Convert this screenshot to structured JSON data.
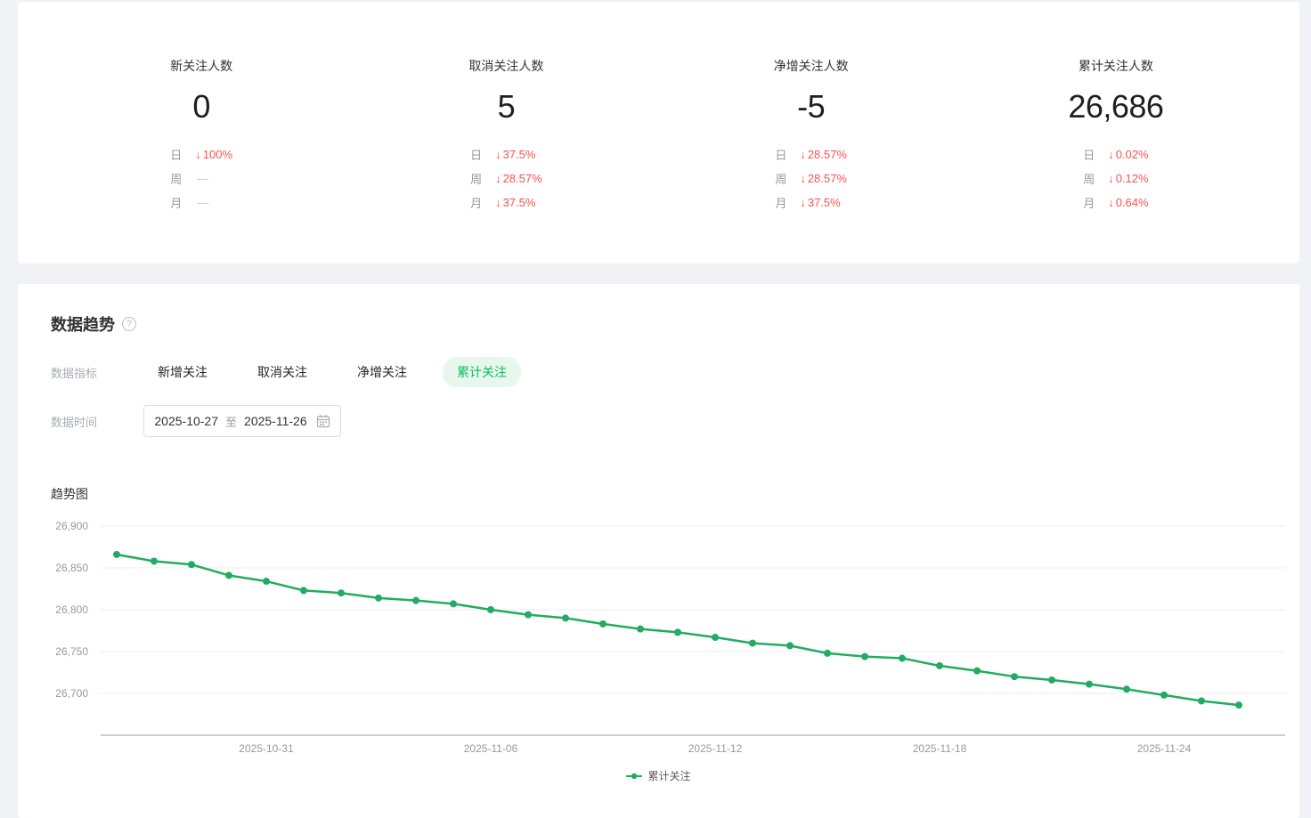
{
  "colors": {
    "green": "#22ac62",
    "tab_active_text": "#07c160",
    "tab_active_bg": "#e8f7ee",
    "red": "#fa5151",
    "axis_text": "#999999",
    "gridline": "#ececec",
    "axis_line": "#cccccc"
  },
  "stats": {
    "cards": [
      {
        "title": "新关注人数",
        "value": "0",
        "trends": [
          {
            "label": "日",
            "arrow": "↓",
            "value": "100%",
            "state": "down"
          },
          {
            "label": "周",
            "arrow": "",
            "value": "—",
            "state": "dash"
          },
          {
            "label": "月",
            "arrow": "",
            "value": "—",
            "state": "dash"
          }
        ]
      },
      {
        "title": "取消关注人数",
        "value": "5",
        "trends": [
          {
            "label": "日",
            "arrow": "↓",
            "value": "37.5%",
            "state": "down"
          },
          {
            "label": "周",
            "arrow": "↓",
            "value": "28.57%",
            "state": "down"
          },
          {
            "label": "月",
            "arrow": "↓",
            "value": "37.5%",
            "state": "down"
          }
        ]
      },
      {
        "title": "净增关注人数",
        "value": "-5",
        "trends": [
          {
            "label": "日",
            "arrow": "↓",
            "value": "28.57%",
            "state": "down"
          },
          {
            "label": "周",
            "arrow": "↓",
            "value": "28.57%",
            "state": "down"
          },
          {
            "label": "月",
            "arrow": "↓",
            "value": "37.5%",
            "state": "down"
          }
        ]
      },
      {
        "title": "累计关注人数",
        "value": "26,686",
        "trends": [
          {
            "label": "日",
            "arrow": "↓",
            "value": "0.02%",
            "state": "down"
          },
          {
            "label": "周",
            "arrow": "↓",
            "value": "0.12%",
            "state": "down"
          },
          {
            "label": "月",
            "arrow": "↓",
            "value": "0.64%",
            "state": "down"
          }
        ]
      }
    ]
  },
  "trend_section": {
    "title": "数据趋势",
    "help_glyph": "?",
    "metric_label": "数据指标",
    "tabs": [
      {
        "label": "新增关注",
        "state": "normal"
      },
      {
        "label": "取消关注",
        "state": "normal"
      },
      {
        "label": "净增关注",
        "state": "normal"
      },
      {
        "label": "累计关注",
        "state": "active"
      }
    ],
    "time_label": "数据时间",
    "date_start": "2025-10-27",
    "date_separator": "至",
    "date_end": "2025-11-26",
    "chart_title": "趋势图"
  },
  "chart_data": {
    "type": "line",
    "title": "趋势图",
    "categories": [
      "2025-10-27",
      "2025-10-28",
      "2025-10-29",
      "2025-10-30",
      "2025-10-31",
      "2025-11-01",
      "2025-11-02",
      "2025-11-03",
      "2025-11-04",
      "2025-11-05",
      "2025-11-06",
      "2025-11-07",
      "2025-11-08",
      "2025-11-09",
      "2025-11-10",
      "2025-11-11",
      "2025-11-12",
      "2025-11-13",
      "2025-11-14",
      "2025-11-15",
      "2025-11-16",
      "2025-11-17",
      "2025-11-18",
      "2025-11-19",
      "2025-11-20",
      "2025-11-21",
      "2025-11-22",
      "2025-11-23",
      "2025-11-24",
      "2025-11-25",
      "2025-11-26"
    ],
    "series": [
      {
        "name": "累计关注",
        "color": "#22ac62",
        "values": [
          26866,
          26858,
          26854,
          26841,
          26834,
          26823,
          26820,
          26814,
          26811,
          26807,
          26800,
          26794,
          26790,
          26783,
          26777,
          26773,
          26767,
          26760,
          26757,
          26748,
          26744,
          26742,
          26733,
          26727,
          26720,
          26716,
          26711,
          26705,
          26698,
          26691,
          26686
        ]
      }
    ],
    "x_tick_labels": [
      "2025-10-31",
      "2025-11-06",
      "2025-11-12",
      "2025-11-18",
      "2025-11-24"
    ],
    "y_ticks": [
      26700,
      26750,
      26800,
      26850,
      26900
    ],
    "ylim": [
      26650,
      26900
    ],
    "grid": "horizontal",
    "legend_position": "bottom"
  }
}
